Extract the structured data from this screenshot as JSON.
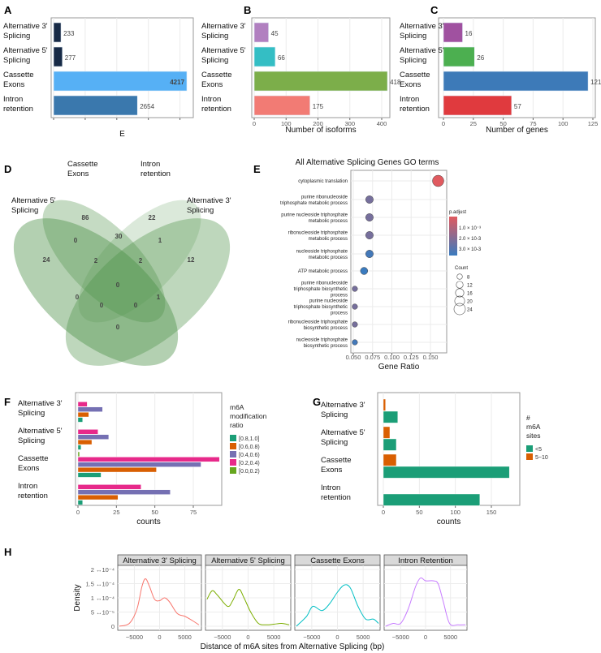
{
  "panel_labels": [
    "A",
    "B",
    "C",
    "D",
    "E",
    "F",
    "G",
    "H"
  ],
  "chart_data": {
    "A": {
      "type": "bar",
      "categories": [
        "Alternative 3' Splicing",
        "Alternative 5' Splicing",
        "Cassette Exons",
        "Intron retention"
      ],
      "category_lines": [
        [
          "Alternative 3'",
          "Splicing"
        ],
        [
          "Alternative 5'",
          "Splicing"
        ],
        [
          "Cassette",
          "Exons"
        ],
        [
          "Intron",
          "retention"
        ]
      ],
      "values": [
        233,
        277,
        4217,
        2654
      ],
      "value_labels": [
        "233",
        "277",
        "4217",
        "2654"
      ],
      "colors": [
        "#172a46",
        "#172a46",
        "#56b0f5",
        "#3a78ad"
      ],
      "xlabel": "E",
      "xlim": [
        0,
        4400
      ],
      "ticks": [
        0,
        1000,
        2000,
        3000,
        4000
      ],
      "tick_labels": []
    },
    "B": {
      "type": "bar",
      "categories": [
        "Alternative 3' Splicing",
        "Alternative 5' Splicing",
        "Cassette Exons",
        "Intron retention"
      ],
      "category_lines": [
        [
          "Alternative 3'",
          "Splicing"
        ],
        [
          "Alternative 5'",
          "Splicing"
        ],
        [
          "Cassette",
          "Exons"
        ],
        [
          "Intron",
          "retention"
        ]
      ],
      "values": [
        45,
        66,
        418,
        175
      ],
      "value_labels": [
        "45",
        "66",
        "418",
        "175"
      ],
      "colors": [
        "#b180c0",
        "#34bec4",
        "#7cae4a",
        "#f27b74"
      ],
      "xlabel": "Number of isoforms",
      "xlim": [
        0,
        420
      ],
      "ticks": [
        0,
        100,
        200,
        300,
        400
      ],
      "tick_labels": [
        "0",
        "100",
        "200",
        "300",
        "400"
      ]
    },
    "C": {
      "type": "bar",
      "categories": [
        "Alternative 3' Splicing",
        "Alternative 5' Splicing",
        "Cassette Exons",
        "Intron retention"
      ],
      "category_lines": [
        [
          "Alternative 3'",
          "Splicing"
        ],
        [
          "Alternative 5'",
          "Splicing"
        ],
        [
          "Cassette",
          "Exons"
        ],
        [
          "Intron",
          "retention"
        ]
      ],
      "values": [
        16,
        26,
        121,
        57
      ],
      "value_labels": [
        "16",
        "26",
        "121",
        "57"
      ],
      "colors": [
        "#a051a0",
        "#4caf50",
        "#3d7ab8",
        "#e03a3e"
      ],
      "xlabel": "Number of genes",
      "xlim": [
        0,
        127
      ],
      "ticks": [
        0,
        25,
        50,
        75,
        100,
        125
      ],
      "tick_labels": [
        "0",
        "25",
        "50",
        "75",
        "100",
        "125"
      ]
    },
    "D": {
      "type": "venn",
      "sets": [
        [
          "Alternative 5'",
          "Splicing"
        ],
        [
          "Cassette",
          "Exons"
        ],
        [
          "Intron",
          "retention"
        ],
        [
          "Alternative 3'",
          "Splicing"
        ]
      ],
      "region_counts": {
        "A5_only": "24",
        "CE_only": "86",
        "IR_only": "22",
        "A3_only": "12",
        "A5_CE": "0",
        "CE_IR": "30",
        "IR_A3": "1",
        "A5_CE_IR": "2",
        "CE_IR_A3": "2",
        "all": "0",
        "A5_IR": "0",
        "CE_A3": "1",
        "A5_IR_A3": "0",
        "A5_CE_A3": "0",
        "A5_A3": "0"
      }
    },
    "E": {
      "type": "scatter",
      "title": "All Alternative Splicing Genes GO terms",
      "xlabel": "Gene Ratio",
      "xlim": [
        0.047,
        0.163
      ],
      "ticks": [
        0.05,
        0.075,
        0.1,
        0.125,
        0.15
      ],
      "tick_labels": [
        "0.050",
        "0.075",
        "0.100",
        "0.125",
        "0.150"
      ],
      "terms": [
        {
          "lines": [
            "cytoplasmic translation"
          ],
          "ratio": 0.16,
          "count": 24,
          "padj": 0.0003
        },
        {
          "lines": [
            "purine ribonucleoside",
            "triphosphate metabolic process"
          ],
          "ratio": 0.071,
          "count": 14,
          "padj": 0.0024
        },
        {
          "lines": [
            "purine nucleoside triphosphate",
            "metabolic process"
          ],
          "ratio": 0.071,
          "count": 14,
          "padj": 0.0024
        },
        {
          "lines": [
            "ribonucleoside triphosphate",
            "metabolic process"
          ],
          "ratio": 0.071,
          "count": 14,
          "padj": 0.0024
        },
        {
          "lines": [
            "nucleoside triphosphate",
            "metabolic process"
          ],
          "ratio": 0.071,
          "count": 14,
          "padj": 0.0034
        },
        {
          "lines": [
            "ATP metabolic process"
          ],
          "ratio": 0.064,
          "count": 13,
          "padj": 0.0036
        },
        {
          "lines": [
            "purine ribonucleoside",
            "triphosphate biosynthetic",
            "process"
          ],
          "ratio": 0.052,
          "count": 8,
          "padj": 0.0024
        },
        {
          "lines": [
            "purine nucleoside",
            "triphosphate biosynthetic",
            "process"
          ],
          "ratio": 0.052,
          "count": 8,
          "padj": 0.0024
        },
        {
          "lines": [
            "ribonucleoside triphosphate",
            "biosynthetic process"
          ],
          "ratio": 0.052,
          "count": 8,
          "padj": 0.0024
        },
        {
          "lines": [
            "nucleoside triphosphate",
            "biosynthetic process"
          ],
          "ratio": 0.052,
          "count": 8,
          "padj": 0.0034
        }
      ],
      "color_legend": {
        "title": "p.adjust",
        "labels": [
          "1.0 × 10⁻³",
          "2.0 × 10-3",
          "3.0 × 10-3"
        ],
        "low": "#e05a5f",
        "high": "#3a7bbf"
      },
      "size_legend": {
        "title": "Count",
        "labels": [
          "8",
          "12",
          "16",
          "20",
          "24"
        ],
        "values": [
          8,
          12,
          16,
          20,
          24
        ]
      }
    },
    "F": {
      "type": "bar",
      "categories": [
        "Alternative 3' Splicing",
        "Alternative 5' Splicing",
        "Cassette Exons",
        "Intron retention"
      ],
      "category_lines": [
        [
          "Alternative 3'",
          "Splicing"
        ],
        [
          "Alternative 5'",
          "Splicing"
        ],
        [
          "Cassette",
          "Exons"
        ],
        [
          "Intron",
          "retention"
        ]
      ],
      "xlabel": "counts",
      "xlim": [
        0,
        95
      ],
      "ticks": [
        0,
        25,
        50,
        75
      ],
      "tick_labels": [
        "0",
        "25",
        "50",
        "75"
      ],
      "legend_title": [
        "m6A",
        "modification",
        "ratio"
      ],
      "series": [
        {
          "name": "[0.8,1.0]",
          "color": "#1b9e77",
          "values": [
            3,
            2,
            15,
            3
          ]
        },
        {
          "name": "[0.6,0.8)",
          "color": "#d95f02",
          "values": [
            7,
            9,
            51,
            26
          ]
        },
        {
          "name": "[0.4,0.6)",
          "color": "#7570b3",
          "values": [
            16,
            20,
            80,
            60
          ]
        },
        {
          "name": "[0.2,0.4)",
          "color": "#e7298a",
          "values": [
            6,
            13,
            92,
            41
          ]
        },
        {
          "name": "[0.0,0.2)",
          "color": "#66a61e",
          "values": [
            0,
            0,
            1,
            0
          ]
        }
      ]
    },
    "G": {
      "type": "bar",
      "categories": [
        "Alternative 3' Splicing",
        "Alternative 5' Splicing",
        "Cassette Exons",
        "Intron retention"
      ],
      "category_lines": [
        [
          "Alternative 3'",
          "Splicing"
        ],
        [
          "Alternative 5'",
          "Splicing"
        ],
        [
          "Cassette",
          "Exons"
        ],
        [
          "Intron",
          "retention"
        ]
      ],
      "xlabel": "counts",
      "xlim": [
        0,
        190
      ],
      "ticks": [
        0,
        50,
        100,
        150
      ],
      "tick_labels": [
        "0",
        "50",
        "100",
        "150"
      ],
      "legend_title": [
        "#",
        "m6A",
        "sites"
      ],
      "series": [
        {
          "name": "<5",
          "color": "#1b9e77",
          "values": [
            20,
            18,
            175,
            134
          ]
        },
        {
          "name": "5~10",
          "color": "#d95f02",
          "values": [
            3,
            9,
            18,
            0
          ]
        }
      ]
    },
    "H": {
      "type": "line",
      "ylabel": "Density",
      "xlabel": "Distance of m6A sites from Alternative Splicing (bp)",
      "xlim": [
        -8300,
        8300
      ],
      "ylim": [
        0,
        0.00021
      ],
      "xticks": [
        -5000,
        0,
        5000
      ],
      "xtick_labels": [
        "−5000",
        "0",
        "5000"
      ],
      "yticks": [
        0,
        5e-05,
        0.0001,
        0.00015,
        0.0002
      ],
      "ytick_labels": [
        "0",
        "5 ↔10⁻⁵",
        "1 ↔10⁻⁴",
        "1.5 ↔10⁻⁴",
        "2 ↔10⁻⁴"
      ],
      "facets": [
        {
          "title": "Alternative 3' Splicing",
          "color": "#f8766d",
          "x": [
            -8000,
            -6000,
            -4500,
            -3500,
            -2800,
            -2000,
            -1000,
            0,
            1000,
            2000,
            3500,
            5000,
            6500,
            7800
          ],
          "y": [
            0,
            0.1,
            0.6,
            1.4,
            1.67,
            1.4,
            0.95,
            0.9,
            1.0,
            0.85,
            0.45,
            0.35,
            0.2,
            0.05
          ]
        },
        {
          "title": "Alternative 5' Splicing",
          "color": "#7cae00",
          "x": [
            -8000,
            -7000,
            -6000,
            -4000,
            -3000,
            -1800,
            -800,
            500,
            2000,
            3500,
            5000,
            6500,
            8000
          ],
          "y": [
            0.95,
            1.25,
            1.1,
            0.7,
            0.9,
            1.3,
            1.0,
            0.5,
            0.1,
            0.05,
            0.07,
            0.1,
            0.05
          ]
        },
        {
          "title": "Cassette Exons",
          "color": "#00bfc4",
          "x": [
            -8000,
            -6000,
            -4800,
            -3000,
            -1500,
            0,
            1300,
            2500,
            4000,
            5500,
            7000,
            8000
          ],
          "y": [
            0,
            0.35,
            0.7,
            0.55,
            0.8,
            1.2,
            1.45,
            1.35,
            0.7,
            0.25,
            0.25,
            0.1
          ]
        },
        {
          "title": "Intron Retention",
          "color": "#c77cff",
          "x": [
            -8000,
            -6500,
            -5000,
            -3500,
            -2000,
            -1000,
            0,
            1500,
            2500,
            3500,
            4800,
            6500,
            8000
          ],
          "y": [
            0,
            0.1,
            0.1,
            0.6,
            1.4,
            1.7,
            1.6,
            1.6,
            1.5,
            0.9,
            0.1,
            0.05,
            0.05
          ]
        }
      ]
    }
  }
}
